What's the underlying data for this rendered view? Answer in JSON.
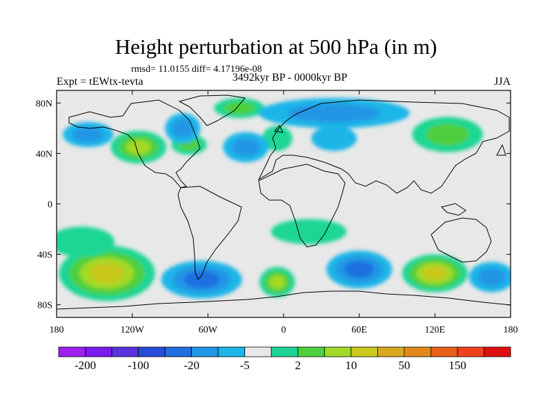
{
  "header": {
    "title": "Height perturbation at 500 hPa (in m)",
    "stats": "rmsd= 11.0155 diff= 4.17196e-08",
    "experiment": "Expt = tEWtx-tevta",
    "period": "3492kyr BP - 0000kyr BP",
    "season": "JJA"
  },
  "axes": {
    "lat_labels": [
      "80N",
      "40N",
      "0",
      "40S",
      "80S"
    ],
    "lat_values": [
      80,
      40,
      0,
      -40,
      -80
    ],
    "lon_labels": [
      "180",
      "120W",
      "60W",
      "0",
      "60E",
      "120E",
      "180"
    ],
    "lon_values": [
      -180,
      -120,
      -60,
      0,
      60,
      120,
      180
    ],
    "lat_range": [
      -90,
      90
    ],
    "lon_range": [
      -180,
      180
    ]
  },
  "colorbar": {
    "colors": [
      "#a020f0",
      "#7d1aec",
      "#5a33e0",
      "#2a4bd8",
      "#1f6fe0",
      "#2196e4",
      "#1fb5e8",
      "#e8e8e8",
      "#1ed694",
      "#4ecf3e",
      "#a4d928",
      "#cbc81e",
      "#d8a81e",
      "#e08a1e",
      "#e8601c",
      "#f0401c",
      "#e01010"
    ],
    "labels": [
      "-200",
      "-100",
      "-20",
      "-5",
      "2",
      "10",
      "50",
      "150"
    ]
  },
  "field_patches": [
    {
      "name": "nh-high-canada",
      "lon": -115,
      "lat": 45,
      "rlon": 22,
      "rlat": 13,
      "v": 3
    },
    {
      "name": "greenland-high",
      "lon": -35,
      "lat": 76,
      "rlon": 20,
      "rlat": 8,
      "v": 2
    },
    {
      "name": "n-atlantic-high",
      "lon": -75,
      "lat": 47,
      "rlon": 14,
      "rlat": 8,
      "v": 2
    },
    {
      "name": "asia-high",
      "lon": 130,
      "lat": 55,
      "rlon": 28,
      "rlat": 14,
      "v": 2
    },
    {
      "name": "w-europe-high",
      "lon": -5,
      "lat": 52,
      "rlon": 12,
      "rlat": 10,
      "v": 1
    },
    {
      "name": "arctic-low",
      "lon": 40,
      "lat": 72,
      "rlon": 60,
      "rlat": 12,
      "v": -2
    },
    {
      "name": "n-pacific-low",
      "lon": -155,
      "lat": 55,
      "rlon": 20,
      "rlat": 10,
      "v": -2
    },
    {
      "name": "na-east-low",
      "lon": -80,
      "lat": 60,
      "rlon": 14,
      "rlat": 12,
      "v": -2
    },
    {
      "name": "atlantic-low",
      "lon": -30,
      "lat": 45,
      "rlon": 18,
      "rlat": 12,
      "v": -2
    },
    {
      "name": "e-europe-low",
      "lon": 40,
      "lat": 52,
      "rlon": 18,
      "rlat": 10,
      "v": -1
    },
    {
      "name": "s-pacific-high",
      "lon": -140,
      "lat": -55,
      "rlon": 38,
      "rlat": 22,
      "v": 4
    },
    {
      "name": "s-atlantic-high",
      "lon": -5,
      "lat": -62,
      "rlon": 14,
      "rlat": 12,
      "v": 3
    },
    {
      "name": "s-indian-high",
      "lon": 120,
      "lat": -55,
      "rlon": 26,
      "rlat": 15,
      "v": 4
    },
    {
      "name": "s-america-low",
      "lon": -65,
      "lat": -60,
      "rlon": 32,
      "rlat": 15,
      "v": -3
    },
    {
      "name": "s-indian-low",
      "lon": 60,
      "lat": -52,
      "rlon": 26,
      "rlat": 15,
      "v": -3
    },
    {
      "name": "sw-pacific-low",
      "lon": 165,
      "lat": -58,
      "rlon": 18,
      "rlat": 12,
      "v": -2
    },
    {
      "name": "tropical-pacific",
      "lon": -160,
      "lat": -30,
      "rlon": 26,
      "rlat": 12,
      "v": 1
    },
    {
      "name": "e-africa-band",
      "lon": 20,
      "lat": -22,
      "rlon": 30,
      "rlat": 10,
      "v": 1
    }
  ]
}
